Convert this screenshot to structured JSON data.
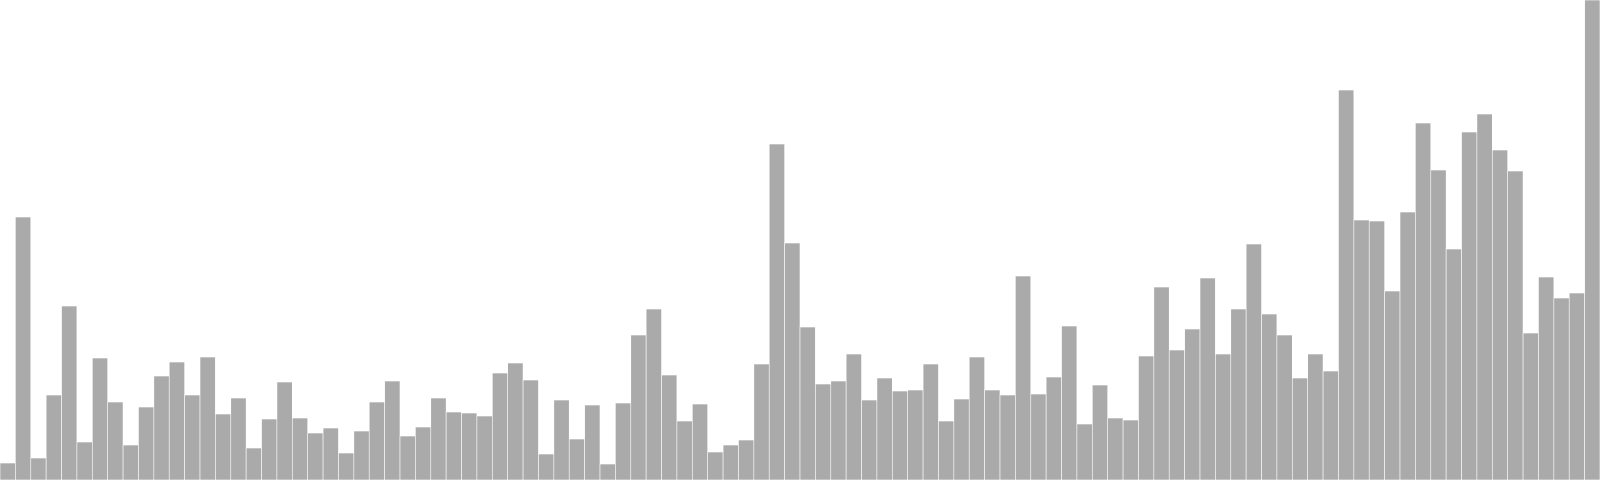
{
  "chart_data": {
    "type": "bar",
    "title": "",
    "xlabel": "",
    "ylabel": "",
    "grid": false,
    "legend": "none",
    "bar_color": "#aaaaaa",
    "ylim": [
      0,
      480
    ],
    "values": [
      17,
      263,
      22,
      85,
      174,
      38,
      122,
      78,
      35,
      73,
      104,
      118,
      85,
      123,
      66,
      82,
      32,
      61,
      98,
      62,
      47,
      52,
      27,
      49,
      78,
      99,
      44,
      53,
      82,
      68,
      67,
      64,
      107,
      117,
      100,
      26,
      80,
      41,
      75,
      16,
      77,
      145,
      171,
      105,
      59,
      76,
      28,
      35,
      40,
      116,
      336,
      237,
      153,
      96,
      99,
      126,
      80,
      102,
      89,
      90,
      116,
      59,
      81,
      123,
      90,
      85,
      204,
      86,
      103,
      154,
      56,
      95,
      62,
      60,
      124,
      193,
      130,
      151,
      202,
      126,
      171,
      236,
      166,
      145,
      102,
      126,
      109,
      390,
      260,
      259,
      189,
      268,
      357,
      310,
      231,
      348,
      366,
      330,
      309,
      147,
      203,
      182,
      187,
      480
    ]
  }
}
